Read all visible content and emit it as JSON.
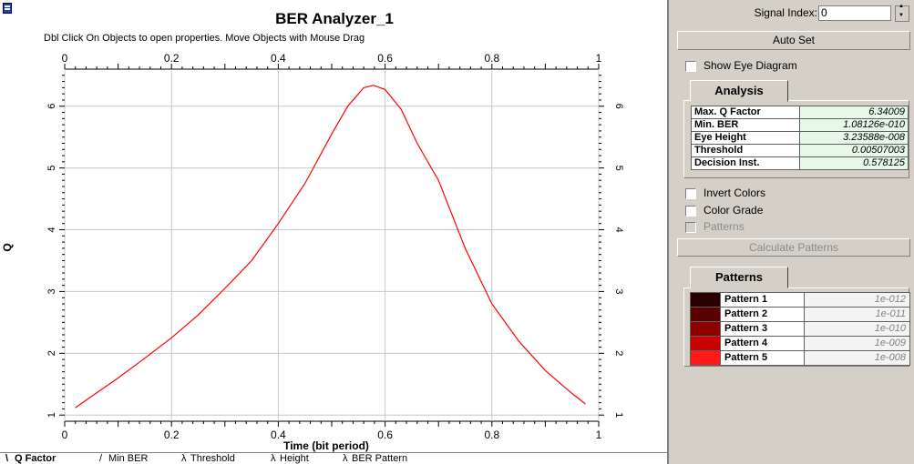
{
  "window": {
    "title": "BER Analyzer_1",
    "hint": "Dbl Click On Objects to open properties.  Move Objects with Mouse Drag"
  },
  "chart_data": {
    "type": "line",
    "xlabel": "Time (bit period)",
    "ylabel": "Q",
    "xlim": [
      0,
      1
    ],
    "ylim": [
      0.9,
      6.6
    ],
    "x_ticks": [
      "0",
      "0.2",
      "0.4",
      "0.6",
      "0.8",
      "1"
    ],
    "y_ticks": [
      "1",
      "2",
      "3",
      "4",
      "5",
      "6"
    ],
    "grid": true,
    "series": [
      {
        "color": "#ff0000",
        "x": [
          0.02,
          0.05,
          0.1,
          0.15,
          0.2,
          0.25,
          0.3,
          0.35,
          0.4,
          0.45,
          0.5,
          0.53,
          0.56,
          0.578,
          0.6,
          0.63,
          0.66,
          0.7,
          0.75,
          0.8,
          0.85,
          0.9,
          0.95,
          0.975
        ],
        "y": [
          1.12,
          1.3,
          1.6,
          1.92,
          2.25,
          2.62,
          3.05,
          3.5,
          4.1,
          4.75,
          5.55,
          6.0,
          6.3,
          6.34,
          6.27,
          5.95,
          5.4,
          4.8,
          3.7,
          2.8,
          2.2,
          1.72,
          1.35,
          1.18
        ]
      }
    ]
  },
  "tabs": [
    "Q Factor",
    "Min BER",
    "Threshold",
    "Height",
    "BER Pattern"
  ],
  "active_tab": "Q Factor",
  "panel": {
    "signal_index_label": "Signal Index:",
    "signal_index_value": "0",
    "auto_set": "Auto Set",
    "show_eye": "Show Eye Diagram",
    "analysis_title": "Analysis",
    "analysis": [
      {
        "label": "Max. Q Factor",
        "value": "6.34009"
      },
      {
        "label": "Min. BER",
        "value": "1.08126e-010"
      },
      {
        "label": "Eye Height",
        "value": "3.23588e-008"
      },
      {
        "label": "Threshold",
        "value": "0.00507003"
      },
      {
        "label": "Decision Inst.",
        "value": "0.578125"
      }
    ],
    "invert_colors": "Invert Colors",
    "color_grade": "Color Grade",
    "patterns_cb": "Patterns",
    "calculate_patterns": "Calculate Patterns",
    "patterns_title": "Patterns",
    "patterns": [
      {
        "name": "Pattern 1",
        "ber": "1e-012",
        "color": "#280000"
      },
      {
        "name": "Pattern 2",
        "ber": "1e-011",
        "color": "#5a0000"
      },
      {
        "name": "Pattern 3",
        "ber": "1e-010",
        "color": "#8c0000"
      },
      {
        "name": "Pattern 4",
        "ber": "1e-009",
        "color": "#c80000"
      },
      {
        "name": "Pattern 5",
        "ber": "1e-008",
        "color": "#ff1a1a"
      }
    ]
  }
}
